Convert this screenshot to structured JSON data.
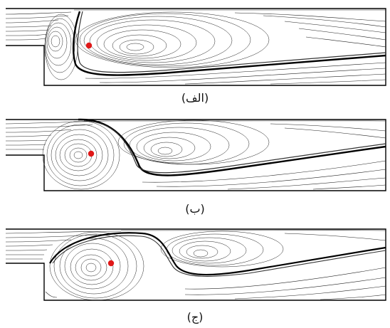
{
  "figure": {
    "panels": [
      {
        "label": "(الف)"
      },
      {
        "label": "(ب)"
      },
      {
        "label": "(ج)"
      }
    ],
    "colors": {
      "streamline": "#222222",
      "wall": "#000000",
      "marker": "#e01818",
      "background": "#ffffff"
    }
  }
}
